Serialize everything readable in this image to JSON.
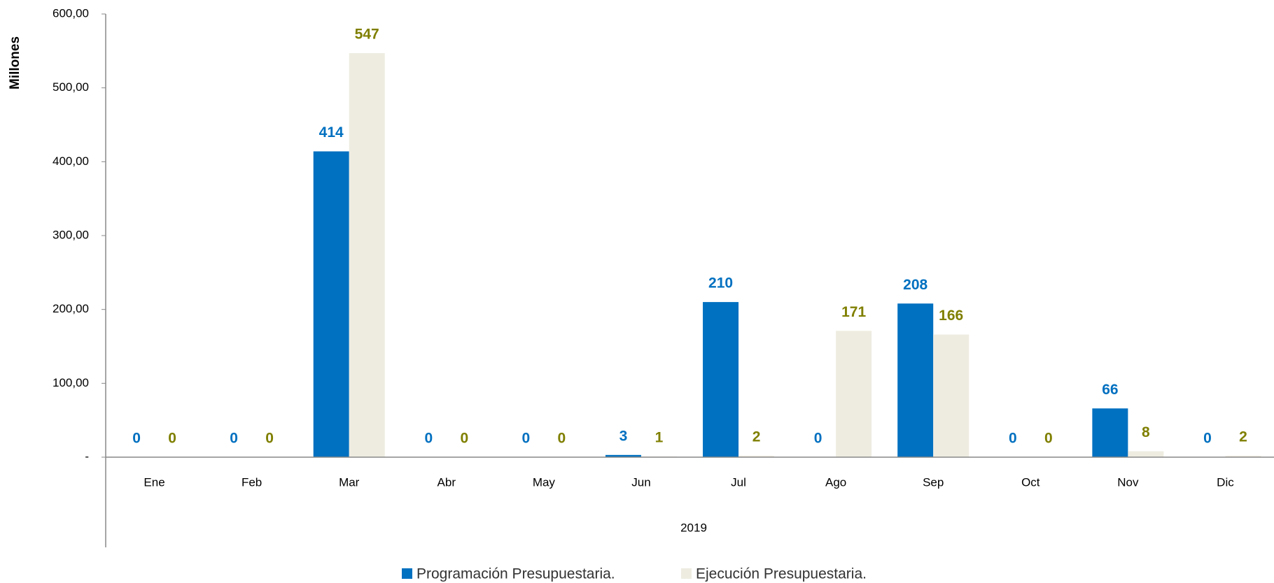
{
  "chart_data": {
    "type": "bar",
    "y_label": "Millones",
    "x_group_label": "2019",
    "categories": [
      "Ene",
      "Feb",
      "Mar",
      "Abr",
      "May",
      "Jun",
      "Jul",
      "Ago",
      "Sep",
      "Oct",
      "Nov",
      "Dic"
    ],
    "series": [
      {
        "name": "Programación Presupuestaria.",
        "color": "#0070c0",
        "label_color": "#0070c0",
        "values": [
          0,
          0,
          414,
          0,
          0,
          3,
          210,
          0,
          208,
          0,
          66,
          0
        ]
      },
      {
        "name": "Ejecución Presupuestaria.",
        "color": "#eeece1",
        "label_color": "#7f7f00",
        "values": [
          0,
          0,
          547,
          0,
          0,
          1,
          2,
          171,
          166,
          0,
          8,
          2
        ]
      }
    ],
    "ylim": [
      0,
      600
    ],
    "yticks": [
      {
        "value": 0,
        "label": "-"
      },
      {
        "value": 100,
        "label": "100,00"
      },
      {
        "value": 200,
        "label": "200,00"
      },
      {
        "value": 300,
        "label": "300,00"
      },
      {
        "value": 400,
        "label": "400,00"
      },
      {
        "value": 500,
        "label": "500,00"
      },
      {
        "value": 600,
        "label": "600,00"
      }
    ],
    "legend": "bottom"
  }
}
